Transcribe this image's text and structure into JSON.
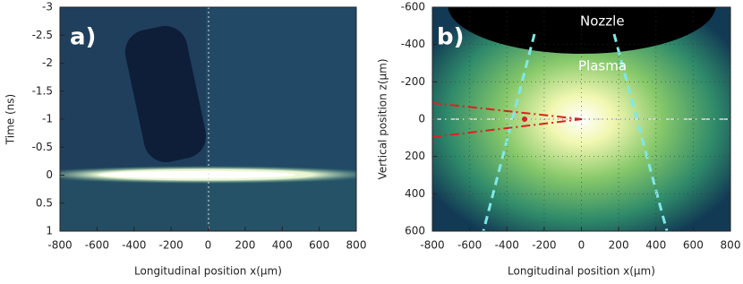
{
  "chart_data": [
    {
      "type": "image",
      "annotations": [
        "a)"
      ],
      "xlabel": "Longitudinal position x(μm)",
      "ylabel": "Time (ns)",
      "xlim": [
        -800,
        800
      ],
      "xticks": [
        -800,
        -600,
        -400,
        -200,
        0,
        200,
        400,
        600,
        800
      ],
      "ylim": [
        -3,
        1
      ],
      "yticks": [
        -3,
        -2.5,
        -2,
        -1.5,
        -1,
        -0.5,
        0,
        0.5,
        1
      ],
      "y_inverted": true,
      "grid": false
    },
    {
      "type": "image",
      "annotations": [
        "b)",
        "Nozzle",
        "Plasma"
      ],
      "xlabel": "Longitudinal position x(μm)",
      "ylabel": "Vertical position z(μm)",
      "xlim": [
        -800,
        800
      ],
      "xticks": [
        -800,
        -600,
        -400,
        -200,
        0,
        200,
        400,
        600,
        800
      ],
      "ylim": [
        -600,
        600
      ],
      "yticks": [
        -600,
        -400,
        -200,
        0,
        200,
        400,
        600
      ],
      "y_inverted": true,
      "grid": true
    }
  ]
}
